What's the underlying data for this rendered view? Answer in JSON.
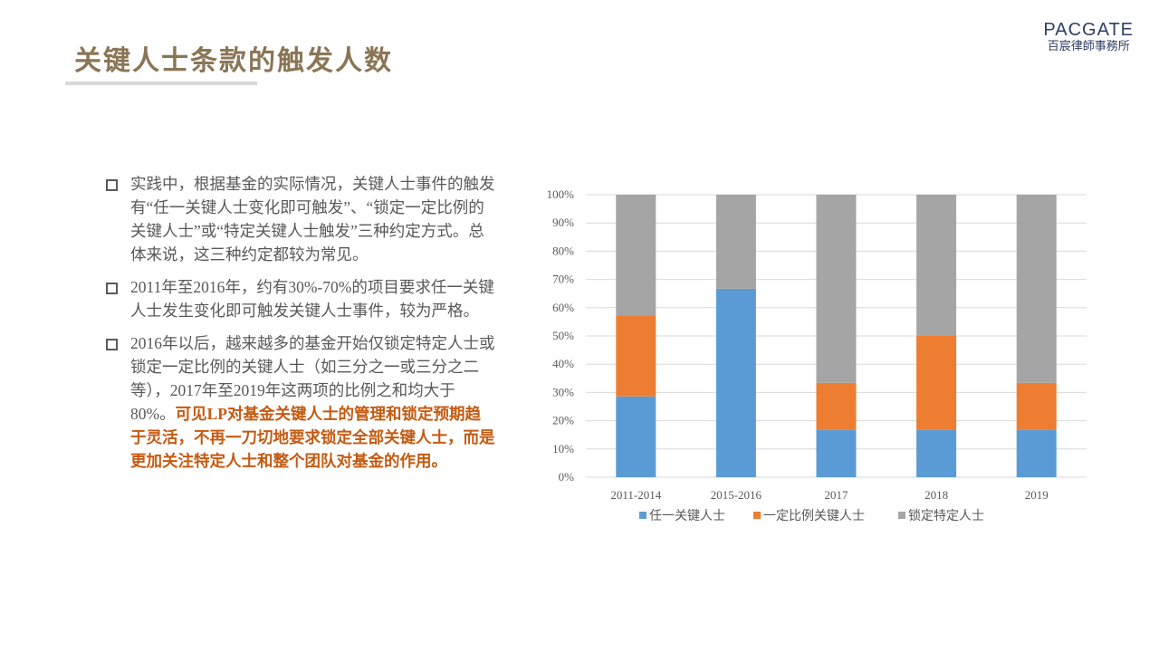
{
  "page": {
    "title": "关键人士条款的触发人数",
    "logo": {
      "main": "PACGATE",
      "sub": "百宸律師事務所"
    }
  },
  "bullets": [
    {
      "text": "实践中，根据基金的实际情况，关键人士事件的触发有“任一关键人士变化即可触发”、“锁定一定比例的关键人士”或“特定关键人士触发”三种约定方式。总体来说，这三种约定都较为常见。"
    },
    {
      "text": "2011年至2016年，约有30%-70%的项目要求任一关键人士发生变化即可触发关键人士事件，较为严格。"
    },
    {
      "text": "2016年以后，越来越多的基金开始仅锁定特定人士或锁定一定比例的关键人士（如三分之一或三分之二等），2017年至2019年这两项的比例之和均大于80%。",
      "highlight": "可见LP对基金关键人士的管理和锁定预期趋于灵活，不再一刀切地要求锁定全部关键人士，而是更加关注特定人士和整个团队对基金的作用。"
    }
  ],
  "chart_data": {
    "type": "bar",
    "stacked": true,
    "categories": [
      "2011-2014",
      "2015-2016",
      "2017",
      "2018",
      "2019"
    ],
    "series": [
      {
        "name": "任一关键人士",
        "color": "#5b9bd5",
        "values": [
          28.6,
          66.7,
          16.7,
          16.7,
          16.7
        ]
      },
      {
        "name": "一定比例关键人士",
        "color": "#ed7d31",
        "values": [
          28.6,
          0,
          16.7,
          33.3,
          16.7
        ]
      },
      {
        "name": "锁定特定人士",
        "color": "#a5a5a5",
        "values": [
          42.8,
          33.3,
          66.6,
          50.0,
          66.6
        ]
      }
    ],
    "yticks": [
      "0%",
      "10%",
      "20%",
      "30%",
      "40%",
      "50%",
      "60%",
      "70%",
      "80%",
      "90%",
      "100%"
    ],
    "ylim": [
      0,
      100
    ],
    "grid": true,
    "legend": "bottom"
  }
}
